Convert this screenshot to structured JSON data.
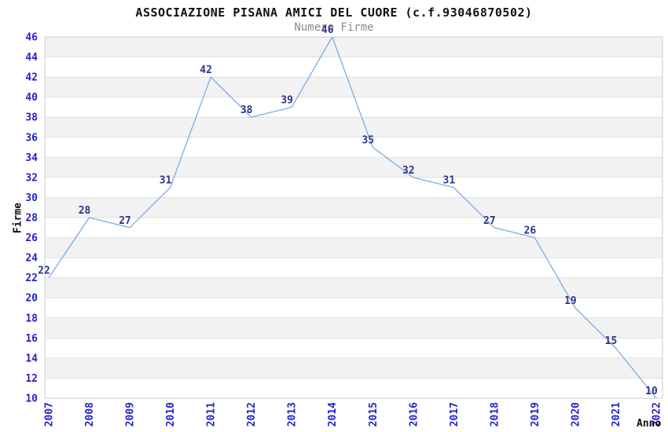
{
  "title": "ASSOCIAZIONE PISANA AMICI DEL CUORE (c.f.93046870502)",
  "subtitle": "Numero Firme",
  "chart_data": {
    "type": "line",
    "title": "ASSOCIAZIONE PISANA AMICI DEL CUORE (c.f.93046870502)",
    "subtitle": "Numero Firme",
    "x": [
      "2007",
      "2008",
      "2009",
      "2010",
      "2011",
      "2012",
      "2013",
      "2014",
      "2015",
      "2016",
      "2017",
      "2018",
      "2019",
      "2020",
      "2021",
      "2022"
    ],
    "values": [
      22,
      28,
      27,
      31,
      42,
      38,
      39,
      46,
      35,
      32,
      31,
      27,
      26,
      19,
      15,
      10
    ],
    "point_labels": [
      "22",
      "28",
      "27",
      "31",
      "42",
      "38",
      "39",
      "46",
      "35",
      "32",
      "31",
      "27",
      "26",
      "19",
      "15",
      "10"
    ],
    "xlabel": "Anno",
    "ylabel": "Firme",
    "ylim": [
      10,
      46
    ],
    "ytick_step": 2,
    "yticks": [
      10,
      12,
      14,
      16,
      18,
      20,
      22,
      24,
      26,
      28,
      30,
      32,
      34,
      36,
      38,
      40,
      42,
      44,
      46
    ],
    "grid": "horizontal-bands-alternating",
    "legend_position": "none"
  },
  "colors": {
    "line": "#79ace5",
    "tick_label": "#2222cc",
    "point_label": "#333388",
    "band_fill": "#f2f2f2",
    "grid_line": "#e0e0e0",
    "plot_border": "#cccccc",
    "title_text": "#111111",
    "subtitle_text": "#8a8a8a",
    "background": "#ffffff"
  }
}
